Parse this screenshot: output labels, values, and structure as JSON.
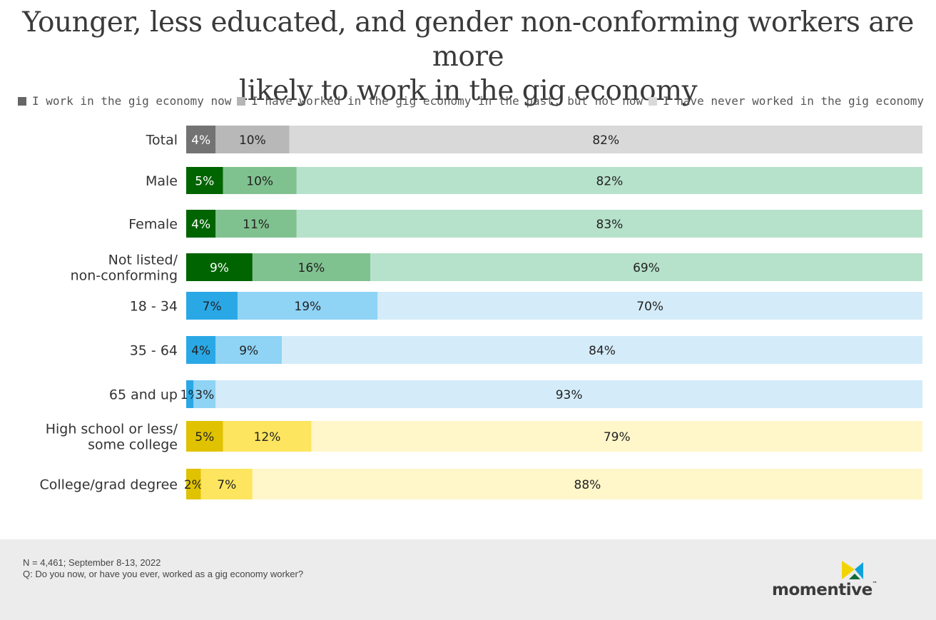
{
  "title_lines": [
    "Younger, less educated, and gender non-conforming workers are more",
    "likely to work in the gig economy"
  ],
  "legend": [
    {
      "label": "I work in the gig economy now",
      "color": "#666666"
    },
    {
      "label": "I have worked in the gig economy in the past, but not now",
      "color": "#b5b5b5"
    },
    {
      "label": "I have never worked in the gig economy",
      "color": "#d9d9d9"
    }
  ],
  "chart_data": {
    "type": "bar",
    "orientation": "horizontal",
    "stacked": true,
    "xlim": [
      0,
      100
    ],
    "series": [
      {
        "name": "I work in the gig economy now"
      },
      {
        "name": "I have worked in the gig economy in the past, but not now"
      },
      {
        "name": "I have never worked in the gig economy"
      }
    ],
    "rows": [
      {
        "label": [
          "Total"
        ],
        "values": [
          4,
          10,
          82
        ],
        "labels": [
          "4%",
          "10%",
          "82%"
        ],
        "colors": [
          "#737373",
          "#b8b8b8",
          "#d9d9d9"
        ],
        "text_colors": [
          "#ffffff",
          "#222222",
          "#222222"
        ]
      },
      {
        "label": [
          "Male"
        ],
        "values": [
          5,
          10,
          82
        ],
        "labels": [
          "5%",
          "10%",
          "82%"
        ],
        "colors": [
          "#006400",
          "#80c28f",
          "#b6e1cb"
        ],
        "text_colors": [
          "#ffffff",
          "#222222",
          "#222222"
        ]
      },
      {
        "label": [
          "Female"
        ],
        "values": [
          4,
          11,
          83
        ],
        "labels": [
          "4%",
          "11%",
          "83%"
        ],
        "colors": [
          "#006400",
          "#80c28f",
          "#b6e1cb"
        ],
        "text_colors": [
          "#ffffff",
          "#222222",
          "#222222"
        ]
      },
      {
        "label": [
          "Not listed/",
          "non-conforming"
        ],
        "values": [
          9,
          16,
          69
        ],
        "labels": [
          "9%",
          "16%",
          "69%"
        ],
        "colors": [
          "#006400",
          "#80c28f",
          "#b6e1cb"
        ],
        "text_colors": [
          "#ffffff",
          "#222222",
          "#222222"
        ]
      },
      {
        "label": [
          "18 - 34"
        ],
        "values": [
          7,
          19,
          70
        ],
        "labels": [
          "7%",
          "19%",
          "70%"
        ],
        "colors": [
          "#2aa8e6",
          "#8fd3f5",
          "#d4ecf9"
        ],
        "text_colors": [
          "#222222",
          "#222222",
          "#222222"
        ]
      },
      {
        "label": [
          "35 - 64"
        ],
        "values": [
          4,
          9,
          84
        ],
        "labels": [
          "4%",
          "9%",
          "84%"
        ],
        "colors": [
          "#2aa8e6",
          "#8fd3f5",
          "#d4ecf9"
        ],
        "text_colors": [
          "#222222",
          "#222222",
          "#222222"
        ]
      },
      {
        "label": [
          "65 and up"
        ],
        "values": [
          1,
          3,
          93
        ],
        "labels": [
          "1%",
          "3%",
          "93%"
        ],
        "colors": [
          "#2aa8e6",
          "#8fd3f5",
          "#d4ecf9"
        ],
        "text_colors": [
          "#222222",
          "#222222",
          "#222222"
        ]
      },
      {
        "label": [
          "High school or less/",
          "some college"
        ],
        "values": [
          5,
          12,
          79
        ],
        "labels": [
          "5%",
          "12%",
          "79%"
        ],
        "colors": [
          "#e0c200",
          "#fde55f",
          "#fff6c9"
        ],
        "text_colors": [
          "#222222",
          "#222222",
          "#222222"
        ]
      },
      {
        "label": [
          "College/grad degree"
        ],
        "values": [
          2,
          7,
          88
        ],
        "labels": [
          "2%",
          "7%",
          "88%"
        ],
        "colors": [
          "#e0c200",
          "#fde55f",
          "#fff6c9"
        ],
        "text_colors": [
          "#222222",
          "#222222",
          "#222222"
        ]
      }
    ]
  },
  "footnote": {
    "line1": "N = 4,461; September 8-13, 2022",
    "line2": "Q: Do you now, or have you ever, worked as a gig economy worker?"
  },
  "logo": {
    "word": "momentive",
    "tm": "™",
    "colors": [
      "#f2d500",
      "#0fa3dc",
      "#116b3a"
    ]
  }
}
